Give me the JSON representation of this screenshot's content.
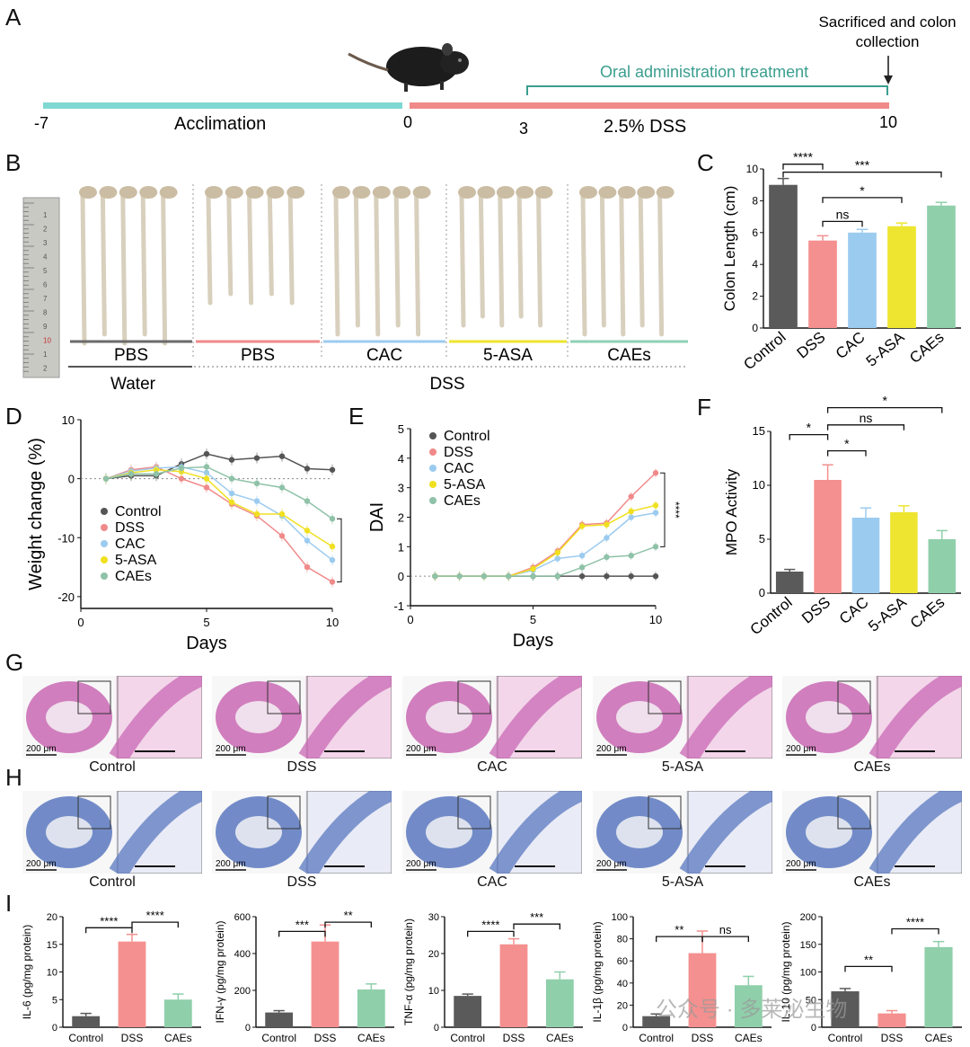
{
  "panels": {
    "A": "A",
    "B": "B",
    "C": "C",
    "D": "D",
    "E": "E",
    "F": "F",
    "G": "G",
    "H": "H",
    "I": "I"
  },
  "timeline": {
    "ticks": [
      "-7",
      "0",
      "3",
      "10"
    ],
    "acclimation": "Acclimation",
    "dss": "2.5% DSS",
    "oral": "Oral administration treatment",
    "sacrifice_line1": "Sacrificed and colon",
    "sacrifice_line2": "collection",
    "colors": {
      "acclimation": "#7fd8d2",
      "dss": "#f08a8a",
      "oral": "#3a9e8f"
    }
  },
  "photo": {
    "groups": [
      {
        "label": "PBS",
        "color": "#6a6a6a"
      },
      {
        "label": "PBS",
        "color": "#f08a8a"
      },
      {
        "label": "CAC",
        "color": "#9ccbf0"
      },
      {
        "label": "5-ASA",
        "color": "#eee530"
      },
      {
        "label": "CAEs",
        "color": "#8fd0b5"
      }
    ],
    "water": "Water",
    "dss": "DSS",
    "ruler_numbers": [
      "1",
      "2",
      "3",
      "4",
      "5",
      "6",
      "7",
      "8",
      "9",
      "10",
      "1",
      "2"
    ]
  },
  "chart_data": [
    {
      "id": "C",
      "type": "bar",
      "ylabel": "Colon Length (cm)",
      "ylim": [
        0,
        10
      ],
      "yticks": [
        "0",
        "2",
        "4",
        "6",
        "8",
        "10"
      ],
      "categories": [
        "Control",
        "DSS",
        "CAC",
        "5-ASA",
        "CAEs"
      ],
      "values": [
        9.0,
        5.5,
        6.0,
        6.4,
        7.7
      ],
      "errors": [
        0.4,
        0.3,
        0.2,
        0.2,
        0.2
      ],
      "colors": [
        "#5a5a5a",
        "#f4908f",
        "#9ccbf0",
        "#eee530",
        "#8fcfaa"
      ],
      "sig": [
        "****",
        "ns",
        "*",
        "***"
      ]
    },
    {
      "id": "D",
      "type": "line",
      "xlabel": "Days",
      "ylabel": "Weight change (%)",
      "xlim": [
        0,
        10
      ],
      "ylim": [
        -22,
        10
      ],
      "xticks": [
        "0",
        "5",
        "10"
      ],
      "yticks": [
        "10",
        "0",
        "-10",
        "-20"
      ],
      "x": [
        1,
        2,
        3,
        4,
        5,
        6,
        7,
        8,
        9,
        10
      ],
      "series": [
        {
          "name": "Control",
          "color": "#555555",
          "values": [
            0,
            0.5,
            0.5,
            2.5,
            4.2,
            3.2,
            3.5,
            3.8,
            1.7,
            1.5
          ]
        },
        {
          "name": "DSS",
          "color": "#f08a8a",
          "values": [
            0,
            1.5,
            2.0,
            0,
            -1.5,
            -4.3,
            -6.3,
            -9.7,
            -15,
            -17.5
          ]
        },
        {
          "name": "CAC",
          "color": "#9ccbf0",
          "values": [
            0,
            1.3,
            1.8,
            2.0,
            1.0,
            -2.5,
            -3.8,
            -6.3,
            -10.5,
            -13.8
          ]
        },
        {
          "name": "5-ASA",
          "color": "#f0e020",
          "values": [
            0,
            1.0,
            1.5,
            1.2,
            0,
            -4.0,
            -6.0,
            -6.0,
            -8.8,
            -11.5
          ]
        },
        {
          "name": "CAEs",
          "color": "#8fc2a8",
          "values": [
            0,
            0.8,
            0.8,
            1.8,
            2.0,
            0,
            -0.8,
            -1.5,
            -3.8,
            -6.8
          ]
        }
      ],
      "sig": "***"
    },
    {
      "id": "E",
      "type": "line",
      "xlabel": "Days",
      "ylabel": "DAI",
      "xlim": [
        0,
        10
      ],
      "ylim": [
        -1,
        5
      ],
      "xticks": [
        "0",
        "5",
        "10"
      ],
      "yticks": [
        "5",
        "4",
        "3",
        "2",
        "1",
        "0",
        "-1"
      ],
      "x": [
        1,
        2,
        3,
        4,
        5,
        6,
        7,
        8,
        9,
        10
      ],
      "series": [
        {
          "name": "Control",
          "color": "#555555",
          "values": [
            0,
            0,
            0,
            0,
            0,
            0,
            0,
            0,
            0,
            0
          ]
        },
        {
          "name": "DSS",
          "color": "#f08a8a",
          "values": [
            0,
            0,
            0,
            0,
            0.3,
            0.85,
            1.75,
            1.8,
            2.7,
            3.5
          ]
        },
        {
          "name": "CAC",
          "color": "#9ccbf0",
          "values": [
            0,
            0,
            0,
            0,
            0.2,
            0.6,
            0.7,
            1.3,
            2.0,
            2.15
          ]
        },
        {
          "name": "5-ASA",
          "color": "#f0e020",
          "values": [
            0,
            0,
            0,
            0,
            0.25,
            0.8,
            1.7,
            1.75,
            2.2,
            2.4
          ]
        },
        {
          "name": "CAEs",
          "color": "#8fc2a8",
          "values": [
            0,
            0,
            0,
            0,
            0,
            0,
            0.3,
            0.65,
            0.7,
            1.0
          ]
        }
      ],
      "sig": "****"
    },
    {
      "id": "F",
      "type": "bar",
      "ylabel": "MPO Activity",
      "ylim": [
        0,
        15
      ],
      "yticks": [
        "0",
        "5",
        "10",
        "15"
      ],
      "categories": [
        "Control",
        "DSS",
        "CAC",
        "5-ASA",
        "CAEs"
      ],
      "values": [
        2.0,
        10.5,
        7.0,
        7.5,
        5.0
      ],
      "errors": [
        0.2,
        1.4,
        0.9,
        0.6,
        0.8
      ],
      "colors": [
        "#5a5a5a",
        "#f4908f",
        "#9ccbf0",
        "#eee530",
        "#8fcfaa"
      ],
      "sig": [
        "*",
        "*",
        "ns",
        "*"
      ]
    },
    {
      "id": "I1",
      "type": "bar",
      "ylabel": "IL-6 (pg/mg protein)",
      "ylim": [
        0,
        20
      ],
      "yticks": [
        "0",
        "5",
        "10",
        "15",
        "20"
      ],
      "categories": [
        "Control",
        "DSS",
        "CAEs"
      ],
      "values": [
        2.0,
        15.5,
        5.0
      ],
      "errors": [
        0.5,
        1.3,
        1.0
      ],
      "colors": [
        "#5a5a5a",
        "#f4908f",
        "#8fcfaa"
      ],
      "sig": [
        "****",
        "****"
      ]
    },
    {
      "id": "I2",
      "type": "bar",
      "ylabel": "IFN-γ (pg/mg protein)",
      "ylim": [
        0,
        600
      ],
      "yticks": [
        "0",
        "200",
        "400",
        "600"
      ],
      "categories": [
        "Control",
        "DSS",
        "CAEs"
      ],
      "values": [
        80,
        465,
        205
      ],
      "errors": [
        10,
        90,
        30
      ],
      "colors": [
        "#5a5a5a",
        "#f4908f",
        "#8fcfaa"
      ],
      "sig": [
        "***",
        "**"
      ]
    },
    {
      "id": "I3",
      "type": "bar",
      "ylabel": "TNF-α (pg/mg protein)",
      "ylim": [
        0,
        30
      ],
      "yticks": [
        "0",
        "10",
        "20",
        "30"
      ],
      "categories": [
        "Control",
        "DSS",
        "CAEs"
      ],
      "values": [
        8.5,
        22.5,
        13.0
      ],
      "errors": [
        0.5,
        1.5,
        2.0
      ],
      "colors": [
        "#5a5a5a",
        "#f4908f",
        "#8fcfaa"
      ],
      "sig": [
        "****",
        "***"
      ]
    },
    {
      "id": "I4",
      "type": "bar",
      "ylabel": "IL-1β (pg/mg protein)",
      "ylim": [
        0,
        100
      ],
      "yticks": [
        "0",
        "20",
        "40",
        "60",
        "80",
        "100"
      ],
      "categories": [
        "Control",
        "DSS",
        "CAEs"
      ],
      "values": [
        10,
        67,
        38
      ],
      "errors": [
        2,
        20,
        8
      ],
      "colors": [
        "#5a5a5a",
        "#f4908f",
        "#8fcfaa"
      ],
      "sig": [
        "**",
        "ns"
      ]
    },
    {
      "id": "I5",
      "type": "bar",
      "ylabel": "IL-10 (pg/mg protein)",
      "ylim": [
        0,
        200
      ],
      "yticks": [
        "0",
        "50",
        "100",
        "150",
        "200"
      ],
      "categories": [
        "Control",
        "DSS",
        "CAEs"
      ],
      "values": [
        65,
        25,
        145
      ],
      "errors": [
        5,
        5,
        10
      ],
      "colors": [
        "#5a5a5a",
        "#f4908f",
        "#8fcfaa"
      ],
      "sig": [
        "**",
        "****"
      ]
    }
  ],
  "histology": {
    "labels": [
      "Control",
      "DSS",
      "CAC",
      "5-ASA",
      "CAEs"
    ],
    "scale": "200 μm"
  },
  "watermark": "公众号 · 多莱泌生物"
}
